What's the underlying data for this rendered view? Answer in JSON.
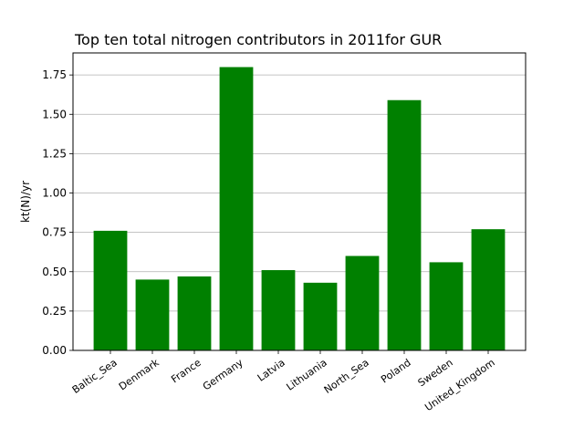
{
  "chart_data": {
    "type": "bar",
    "title": "Top ten total nitrogen contributors in 2011for  GUR",
    "xlabel": "",
    "ylabel": "kt(N)/yr",
    "categories": [
      "Baltic_Sea",
      "Denmark",
      "France",
      "Germany",
      "Latvia",
      "Lithuania",
      "North_Sea",
      "Poland",
      "Sweden",
      "United_Kingdom"
    ],
    "values": [
      0.76,
      0.45,
      0.47,
      1.8,
      0.51,
      0.43,
      0.6,
      1.59,
      0.56,
      0.77
    ],
    "ylim": [
      0,
      1.89
    ],
    "yticks": [
      0.0,
      0.25,
      0.5,
      0.75,
      1.0,
      1.25,
      1.5,
      1.75
    ],
    "ytick_labels": [
      "0.00",
      "0.25",
      "0.50",
      "0.75",
      "1.00",
      "1.25",
      "1.50",
      "1.75"
    ],
    "bar_color": "#008000",
    "grid": "y",
    "legend": "none"
  }
}
